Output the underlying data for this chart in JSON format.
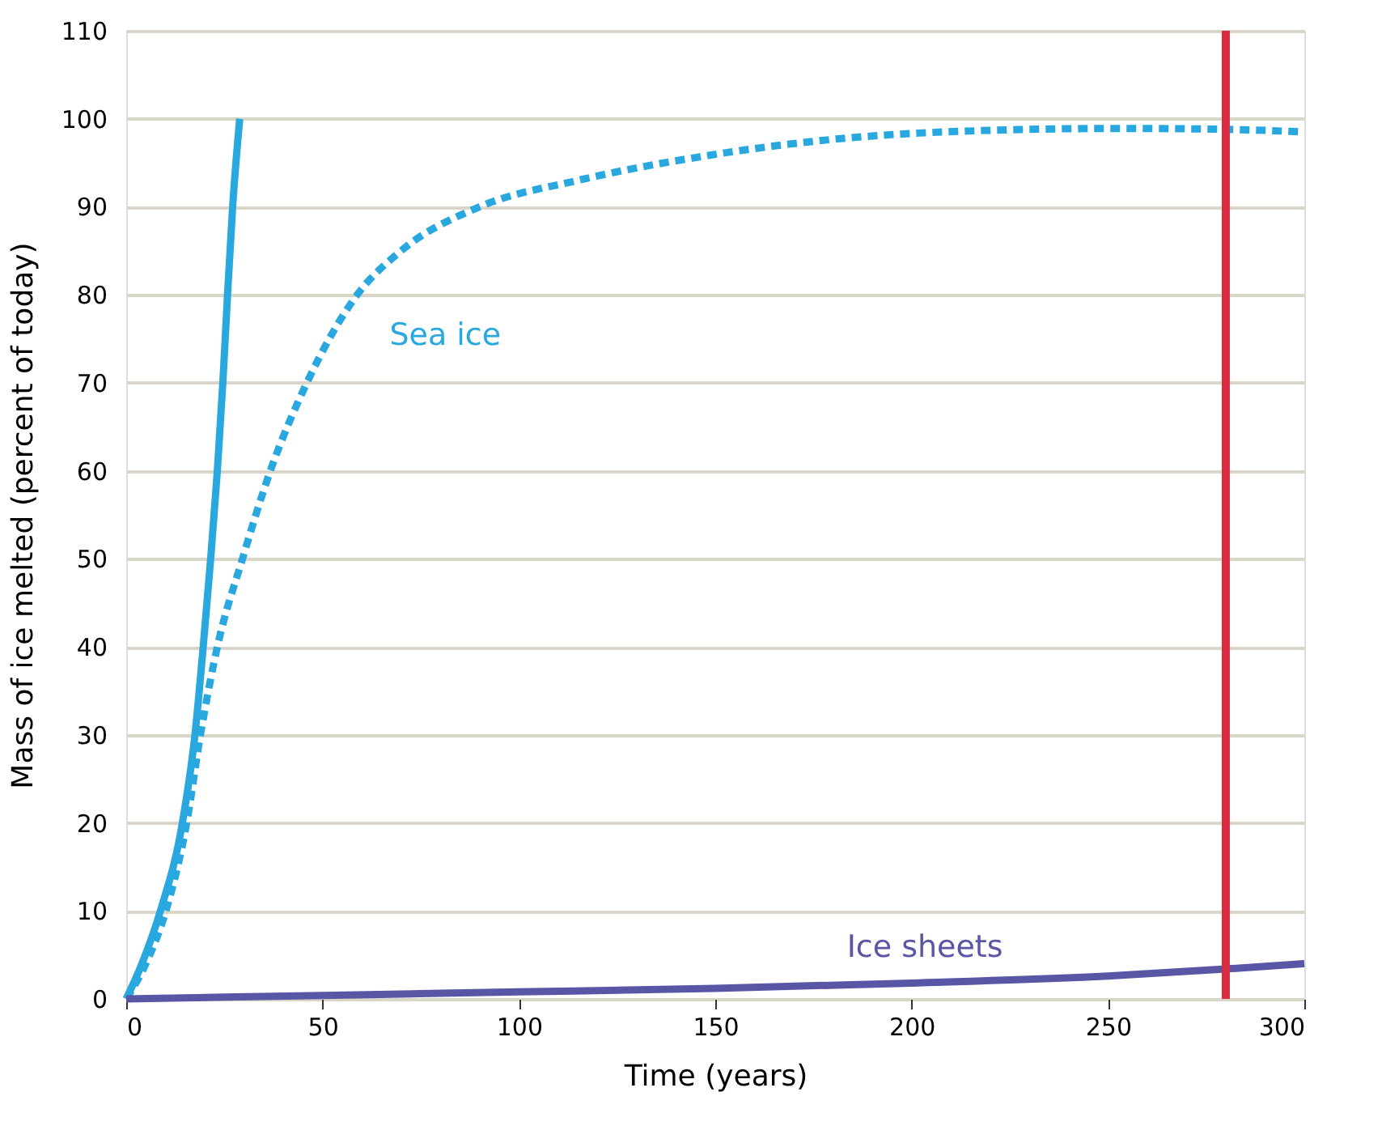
{
  "chart_data": {
    "type": "line",
    "xlabel": "Time (years)",
    "ylabel": "Mass of ice melted (percent of today)",
    "xlim": [
      0,
      300
    ],
    "xticks": [
      0,
      50,
      100,
      150,
      200,
      250,
      300
    ],
    "ylim": [
      0,
      110
    ],
    "yticks": [
      0,
      10,
      20,
      30,
      40,
      50,
      60,
      70,
      80,
      90,
      100,
      110
    ],
    "grid": "y",
    "marker": "none",
    "series": [
      {
        "color": "#29a8e0",
        "line_style": "solid",
        "x": [
          0,
          4,
          8.7,
          14.3,
          17.5,
          19.6,
          21.5,
          23.2,
          24.6,
          25.8,
          27.1,
          28.9
        ],
        "values": [
          0,
          4,
          10,
          20,
          30,
          40,
          50,
          60,
          70,
          80,
          90,
          100
        ]
      },
      {
        "name": "Sea ice",
        "color": "#29a8e0",
        "line_style": "dashed",
        "x": [
          0,
          5,
          10.1,
          15.4,
          18.9,
          23.2,
          29.6,
          36.7,
          46,
          58.8,
          70,
          90,
          115,
          145,
          203,
          252,
          280,
          300
        ],
        "values": [
          0,
          4,
          10,
          20,
          30,
          40,
          50,
          60,
          70,
          80,
          85,
          90,
          93,
          95.6,
          98.4,
          98.9,
          98.8,
          98.5
        ]
      },
      {
        "name": "Ice sheets",
        "color": "#5a56a6",
        "line_style": "solid",
        "x": [
          0,
          50,
          100,
          150,
          200,
          250,
          280,
          300
        ],
        "values": [
          0,
          0.4,
          0.8,
          1.2,
          1.8,
          2.6,
          3.4,
          4
        ]
      }
    ],
    "ref_lines": [
      {
        "axis": "x",
        "value": 280,
        "color": "#d62d42",
        "line_style": "solid"
      }
    ]
  }
}
